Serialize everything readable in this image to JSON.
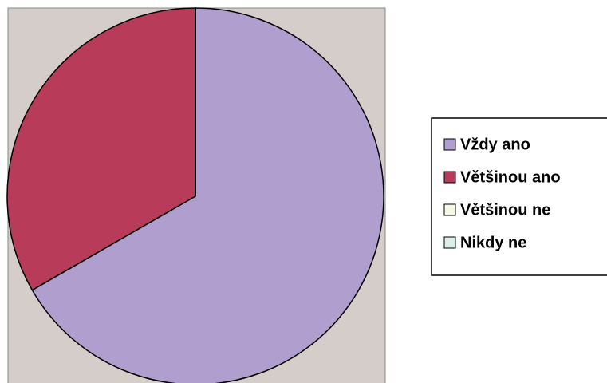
{
  "chart_data": {
    "type": "pie",
    "categories": [
      "Vždy ano",
      "Většinou ano",
      "Většinou ne",
      "Nikdy ne"
    ],
    "values": [
      66.7,
      33.3,
      0,
      0
    ],
    "colors": [
      "#b09fce",
      "#b83b5a",
      "#f6f8e6",
      "#dcefeb"
    ],
    "legend": "right"
  }
}
